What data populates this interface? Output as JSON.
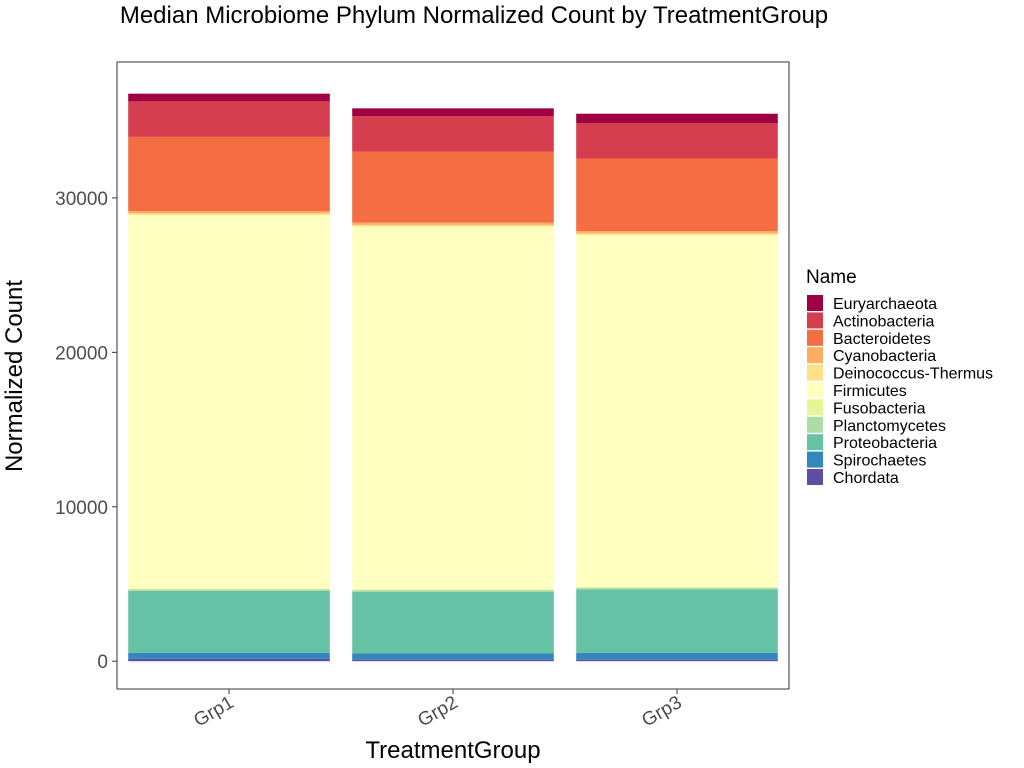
{
  "chart_data": {
    "type": "bar",
    "stacked": true,
    "title": "Median Microbiome Phylum Normalized Count by TreatmentGroup",
    "xlabel": "TreatmentGroup",
    "ylabel": "Normalized Count",
    "ylim": [
      -1800,
      38800
    ],
    "yticks": [
      0,
      10000,
      20000,
      30000
    ],
    "categories": [
      "Grp1",
      "Grp2",
      "Grp3"
    ],
    "legend_title": "Name",
    "legend_position": "right",
    "grid": false,
    "series": [
      {
        "name": "Euryarchaeota",
        "color": "#9E0142",
        "values": [
          500,
          500,
          600
        ]
      },
      {
        "name": "Actinobacteria",
        "color": "#D53E4F",
        "values": [
          2300,
          2300,
          2300
        ]
      },
      {
        "name": "Bacteroidetes",
        "color": "#F46D43",
        "values": [
          4800,
          4600,
          4700
        ]
      },
      {
        "name": "Cyanobacteria",
        "color": "#FDAE61",
        "values": [
          150,
          150,
          150
        ]
      },
      {
        "name": "Deinococcus-Thermus",
        "color": "#FEE08B",
        "values": [
          100,
          100,
          100
        ]
      },
      {
        "name": "Firmicutes",
        "color": "#FFFFBF",
        "values": [
          24200,
          23500,
          22800
        ]
      },
      {
        "name": "Fusobacteria",
        "color": "#E6F598",
        "values": [
          50,
          50,
          50
        ]
      },
      {
        "name": "Planctomycetes",
        "color": "#ABDDA4",
        "values": [
          100,
          100,
          100
        ]
      },
      {
        "name": "Proteobacteria",
        "color": "#66C2A5",
        "values": [
          4000,
          4000,
          4100
        ]
      },
      {
        "name": "Spirochaetes",
        "color": "#3288BD",
        "values": [
          400,
          400,
          450
        ]
      },
      {
        "name": "Chordata",
        "color": "#5E4FA2",
        "values": [
          150,
          100,
          100
        ]
      }
    ]
  }
}
